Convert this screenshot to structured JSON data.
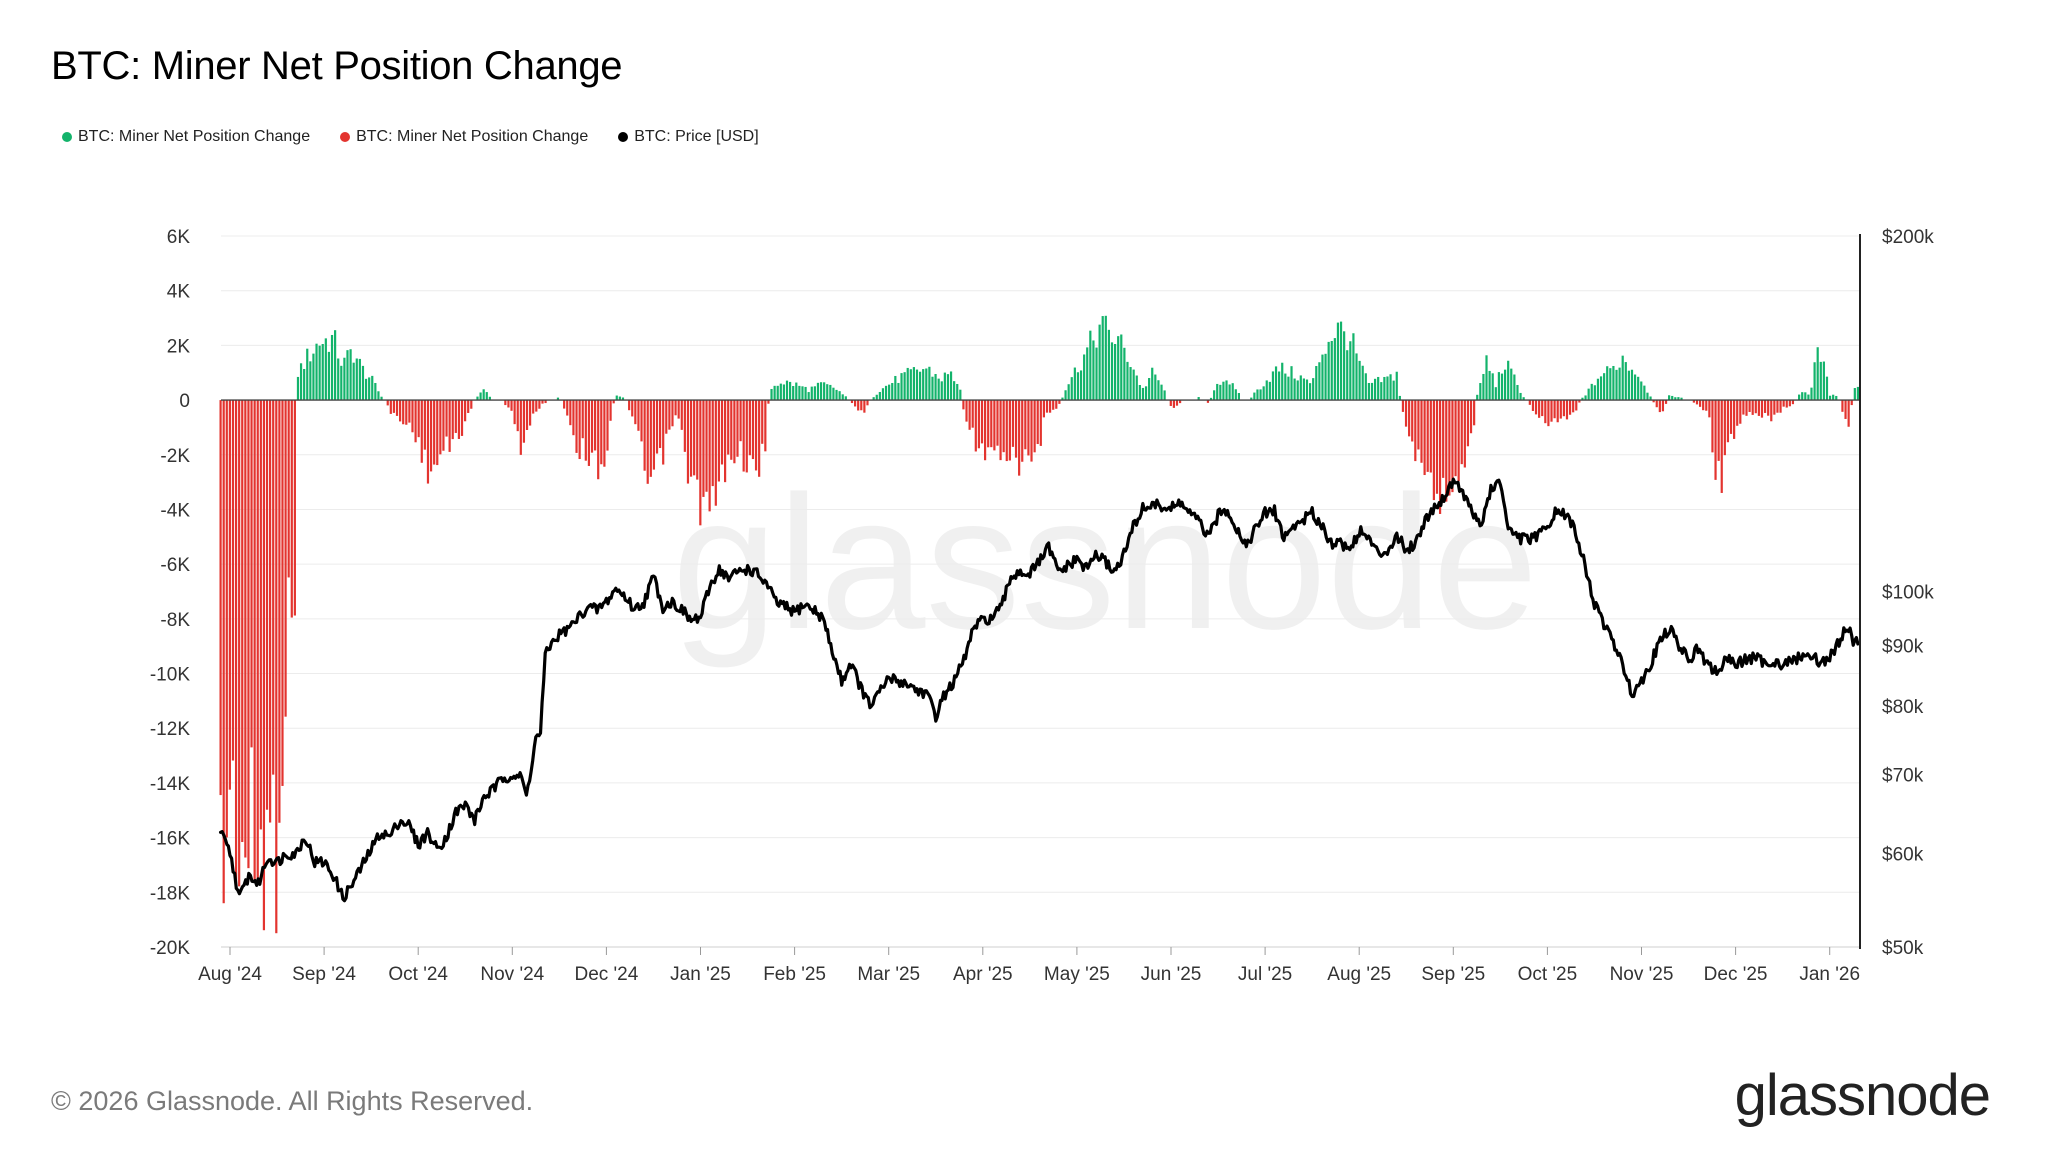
{
  "title": "BTC: Miner Net Position Change",
  "legend": [
    {
      "label": "BTC: Miner Net Position Change",
      "color": "#13b36b"
    },
    {
      "label": "BTC: Miner Net Position Change",
      "color": "#e3342f"
    },
    {
      "label": "BTC: Price [USD]",
      "color": "#000000"
    }
  ],
  "footer": "© 2026 Glassnode. All Rights Reserved.",
  "brand": "glassnode",
  "watermark": "glassnode",
  "chart_data": {
    "type": "bar+line",
    "title": "BTC: Miner Net Position Change",
    "positive_color": "#13b36b",
    "negative_color": "#e3342f",
    "price_color": "#000000",
    "left_axis": {
      "min": -20000,
      "max": 6000,
      "ticks": [
        6000,
        4000,
        2000,
        0,
        -2000,
        -4000,
        -6000,
        -8000,
        -10000,
        -12000,
        -14000,
        -16000,
        -18000,
        -20000
      ],
      "tick_labels": [
        "6K",
        "4K",
        "2K",
        "0",
        "-2K",
        "-4K",
        "-6K",
        "-8K",
        "-10K",
        "-12K",
        "-14K",
        "-16K",
        "-18K",
        "-20K"
      ]
    },
    "right_axis": {
      "scale": "log",
      "min": 50000,
      "max": 200000,
      "ticks": [
        200000,
        100000,
        90000,
        80000,
        70000,
        60000,
        50000
      ],
      "tick_labels": [
        "$200k",
        "$100k",
        "$90k",
        "$80k",
        "$70k",
        "$60k",
        "$50k"
      ]
    },
    "x_axis": {
      "range_months": [
        -0.1,
        17.3
      ],
      "tick_labels": [
        "Aug '24",
        "Sep '24",
        "Oct '24",
        "Nov '24",
        "Dec '24",
        "Jan '25",
        "Feb '25",
        "Mar '25",
        "Apr '25",
        "May '25",
        "Jun '25",
        "Jul '25",
        "Aug '25",
        "Sep '25",
        "Oct '25",
        "Nov '25",
        "Dec '25",
        "Jan '26"
      ],
      "tick_months": [
        0,
        1,
        2,
        3,
        4,
        5,
        6,
        7,
        8,
        9,
        10,
        11,
        12,
        13,
        14,
        15,
        16,
        17
      ]
    },
    "net_position_change_anchors": [
      [
        -0.1,
        -17800
      ],
      [
        0.0,
        -15000
      ],
      [
        0.2,
        -17500
      ],
      [
        0.4,
        -16800
      ],
      [
        0.5,
        -16000
      ],
      [
        0.6,
        -9500
      ],
      [
        0.7,
        -6300
      ],
      [
        0.72,
        1000
      ],
      [
        0.8,
        1500
      ],
      [
        0.95,
        2200
      ],
      [
        1.1,
        2300
      ],
      [
        1.2,
        1300
      ],
      [
        1.3,
        1900
      ],
      [
        1.4,
        1200
      ],
      [
        1.5,
        800
      ],
      [
        1.6,
        200
      ],
      [
        1.7,
        -400
      ],
      [
        1.85,
        -900
      ],
      [
        1.95,
        -1000
      ],
      [
        2.05,
        -2300
      ],
      [
        2.15,
        -2700
      ],
      [
        2.25,
        -2000
      ],
      [
        2.35,
        -1700
      ],
      [
        2.5,
        -900
      ],
      [
        2.6,
        0
      ],
      [
        2.7,
        400
      ],
      [
        2.8,
        0
      ],
      [
        2.85,
        100
      ],
      [
        3.0,
        -400
      ],
      [
        3.1,
        -1900
      ],
      [
        3.2,
        -800
      ],
      [
        3.3,
        -200
      ],
      [
        3.4,
        0
      ],
      [
        3.5,
        100
      ],
      [
        3.6,
        -700
      ],
      [
        3.7,
        -1800
      ],
      [
        3.8,
        -2000
      ],
      [
        3.9,
        -2400
      ],
      [
        4.0,
        -2200
      ],
      [
        4.05,
        -500
      ],
      [
        4.1,
        200
      ],
      [
        4.2,
        100
      ],
      [
        4.3,
        -900
      ],
      [
        4.4,
        -2500
      ],
      [
        4.45,
        -3300
      ],
      [
        4.55,
        -2500
      ],
      [
        4.7,
        -1000
      ],
      [
        4.75,
        -400
      ],
      [
        4.85,
        -2400
      ],
      [
        4.95,
        -3500
      ],
      [
        5.05,
        -4100
      ],
      [
        5.15,
        -4200
      ],
      [
        5.2,
        -3200
      ],
      [
        5.3,
        -2400
      ],
      [
        5.4,
        -1700
      ],
      [
        5.5,
        -2500
      ],
      [
        5.6,
        -2800
      ],
      [
        5.7,
        -1500
      ],
      [
        5.73,
        400
      ],
      [
        5.85,
        700
      ],
      [
        6.0,
        600
      ],
      [
        6.15,
        400
      ],
      [
        6.3,
        600
      ],
      [
        6.45,
        400
      ],
      [
        6.55,
        100
      ],
      [
        6.65,
        -300
      ],
      [
        6.75,
        -400
      ],
      [
        6.85,
        200
      ],
      [
        7.0,
        600
      ],
      [
        7.15,
        900
      ],
      [
        7.3,
        1100
      ],
      [
        7.4,
        1200
      ],
      [
        7.55,
        800
      ],
      [
        7.65,
        1000
      ],
      [
        7.75,
        600
      ],
      [
        7.8,
        -400
      ],
      [
        7.9,
        -1400
      ],
      [
        8.0,
        -2000
      ],
      [
        8.15,
        -2200
      ],
      [
        8.3,
        -2400
      ],
      [
        8.45,
        -2200
      ],
      [
        8.6,
        -2000
      ],
      [
        8.65,
        -600
      ],
      [
        8.8,
        -300
      ],
      [
        8.9,
        600
      ],
      [
        9.0,
        1200
      ],
      [
        9.1,
        1800
      ],
      [
        9.25,
        2800
      ],
      [
        9.35,
        2500
      ],
      [
        9.45,
        2200
      ],
      [
        9.55,
        1600
      ],
      [
        9.7,
        400
      ],
      [
        9.8,
        1000
      ],
      [
        9.9,
        600
      ],
      [
        10.0,
        -300
      ],
      [
        10.1,
        -100
      ],
      [
        10.2,
        0
      ],
      [
        10.3,
        100
      ],
      [
        10.4,
        -100
      ],
      [
        10.5,
        700
      ],
      [
        10.6,
        800
      ],
      [
        10.7,
        300
      ],
      [
        10.8,
        -100
      ],
      [
        10.9,
        300
      ],
      [
        11.0,
        700
      ],
      [
        11.15,
        1200
      ],
      [
        11.3,
        1000
      ],
      [
        11.5,
        600
      ],
      [
        11.6,
        1800
      ],
      [
        11.75,
        2700
      ],
      [
        11.9,
        2400
      ],
      [
        12.0,
        1400
      ],
      [
        12.1,
        600
      ],
      [
        12.3,
        800
      ],
      [
        12.4,
        1000
      ],
      [
        12.45,
        -300
      ],
      [
        12.55,
        -1500
      ],
      [
        12.7,
        -3000
      ],
      [
        12.8,
        -3500
      ],
      [
        12.95,
        -3400
      ],
      [
        13.1,
        -2500
      ],
      [
        13.2,
        -1500
      ],
      [
        13.25,
        100
      ],
      [
        13.35,
        1500
      ],
      [
        13.45,
        600
      ],
      [
        13.55,
        1400
      ],
      [
        13.65,
        800
      ],
      [
        13.75,
        100
      ],
      [
        13.85,
        -400
      ],
      [
        14.0,
        -800
      ],
      [
        14.15,
        -700
      ],
      [
        14.3,
        -400
      ],
      [
        14.35,
        0
      ],
      [
        14.45,
        400
      ],
      [
        14.55,
        900
      ],
      [
        14.7,
        1200
      ],
      [
        14.8,
        1600
      ],
      [
        14.9,
        1200
      ],
      [
        15.0,
        800
      ],
      [
        15.1,
        100
      ],
      [
        15.2,
        -600
      ],
      [
        15.3,
        200
      ],
      [
        15.4,
        100
      ],
      [
        15.5,
        0
      ],
      [
        15.6,
        -200
      ],
      [
        15.7,
        -400
      ],
      [
        15.75,
        -1500
      ],
      [
        15.8,
        -2800
      ],
      [
        15.85,
        -2900
      ],
      [
        15.95,
        -1600
      ],
      [
        16.1,
        -500
      ],
      [
        16.2,
        -600
      ],
      [
        16.3,
        -600
      ],
      [
        16.4,
        -700
      ],
      [
        16.5,
        -300
      ],
      [
        16.6,
        -200
      ],
      [
        16.7,
        300
      ],
      [
        16.8,
        200
      ],
      [
        16.85,
        1800
      ],
      [
        16.95,
        1200
      ],
      [
        17.0,
        200
      ],
      [
        17.1,
        100
      ],
      [
        17.15,
        -700
      ],
      [
        17.22,
        -900
      ],
      [
        17.25,
        600
      ]
    ],
    "price_usd_anchors": [
      [
        -0.1,
        62500
      ],
      [
        0.0,
        60000
      ],
      [
        0.1,
        55000
      ],
      [
        0.2,
        57500
      ],
      [
        0.3,
        56500
      ],
      [
        0.4,
        59500
      ],
      [
        0.5,
        59000
      ],
      [
        0.6,
        60000
      ],
      [
        0.7,
        60000
      ],
      [
        0.8,
        62000
      ],
      [
        0.9,
        59000
      ],
      [
        1.0,
        59000
      ],
      [
        1.1,
        57500
      ],
      [
        1.2,
        55000
      ],
      [
        1.3,
        56500
      ],
      [
        1.4,
        58500
      ],
      [
        1.5,
        60500
      ],
      [
        1.6,
        62500
      ],
      [
        1.7,
        62000
      ],
      [
        1.8,
        64000
      ],
      [
        1.9,
        63500
      ],
      [
        2.0,
        61000
      ],
      [
        2.1,
        62500
      ],
      [
        2.2,
        60500
      ],
      [
        2.3,
        62000
      ],
      [
        2.4,
        65000
      ],
      [
        2.5,
        66000
      ],
      [
        2.6,
        64000
      ],
      [
        2.7,
        67000
      ],
      [
        2.8,
        68000
      ],
      [
        2.9,
        69500
      ],
      [
        3.0,
        70000
      ],
      [
        3.1,
        69500
      ],
      [
        3.15,
        67000
      ],
      [
        3.25,
        75000
      ],
      [
        3.3,
        76000
      ],
      [
        3.35,
        88000
      ],
      [
        3.4,
        90000
      ],
      [
        3.5,
        92000
      ],
      [
        3.6,
        93000
      ],
      [
        3.7,
        95000
      ],
      [
        3.8,
        97000
      ],
      [
        3.9,
        96500
      ],
      [
        4.0,
        98000
      ],
      [
        4.1,
        100500
      ],
      [
        4.2,
        99000
      ],
      [
        4.3,
        96500
      ],
      [
        4.4,
        98000
      ],
      [
        4.5,
        103000
      ],
      [
        4.6,
        97000
      ],
      [
        4.7,
        98000
      ],
      [
        4.8,
        96500
      ],
      [
        4.9,
        94500
      ],
      [
        5.0,
        95000
      ],
      [
        5.1,
        101000
      ],
      [
        5.2,
        104500
      ],
      [
        5.3,
        102500
      ],
      [
        5.4,
        104000
      ],
      [
        5.5,
        104500
      ],
      [
        5.6,
        103500
      ],
      [
        5.7,
        101500
      ],
      [
        5.8,
        98000
      ],
      [
        5.9,
        97000
      ],
      [
        6.0,
        96000
      ],
      [
        6.1,
        97500
      ],
      [
        6.2,
        96500
      ],
      [
        6.3,
        95000
      ],
      [
        6.4,
        89000
      ],
      [
        6.5,
        84000
      ],
      [
        6.6,
        87000
      ],
      [
        6.7,
        83000
      ],
      [
        6.8,
        80000
      ],
      [
        6.9,
        82000
      ],
      [
        7.0,
        84500
      ],
      [
        7.1,
        84000
      ],
      [
        7.2,
        83500
      ],
      [
        7.3,
        82500
      ],
      [
        7.4,
        82000
      ],
      [
        7.5,
        78500
      ],
      [
        7.6,
        82000
      ],
      [
        7.7,
        84000
      ],
      [
        7.8,
        87500
      ],
      [
        7.9,
        93000
      ],
      [
        8.0,
        94500
      ],
      [
        8.1,
        95000
      ],
      [
        8.2,
        97000
      ],
      [
        8.3,
        103000
      ],
      [
        8.4,
        104000
      ],
      [
        8.5,
        103500
      ],
      [
        8.6,
        106000
      ],
      [
        8.7,
        109000
      ],
      [
        8.8,
        104000
      ],
      [
        8.9,
        105000
      ],
      [
        9.0,
        106500
      ],
      [
        9.1,
        104500
      ],
      [
        9.2,
        107500
      ],
      [
        9.3,
        106000
      ],
      [
        9.4,
        104000
      ],
      [
        9.5,
        107500
      ],
      [
        9.6,
        113500
      ],
      [
        9.7,
        117500
      ],
      [
        9.8,
        118500
      ],
      [
        9.9,
        118000
      ],
      [
        10.0,
        117500
      ],
      [
        10.1,
        119000
      ],
      [
        10.2,
        116500
      ],
      [
        10.3,
        114500
      ],
      [
        10.4,
        111000
      ],
      [
        10.5,
        116000
      ],
      [
        10.6,
        117500
      ],
      [
        10.7,
        113000
      ],
      [
        10.8,
        109500
      ],
      [
        10.9,
        113000
      ],
      [
        11.0,
        116500
      ],
      [
        11.1,
        117000
      ],
      [
        11.2,
        111000
      ],
      [
        11.3,
        113500
      ],
      [
        11.4,
        115000
      ],
      [
        11.5,
        116500
      ],
      [
        11.6,
        114000
      ],
      [
        11.7,
        110000
      ],
      [
        11.8,
        110000
      ],
      [
        11.9,
        108500
      ],
      [
        12.0,
        112500
      ],
      [
        12.1,
        111000
      ],
      [
        12.2,
        107500
      ],
      [
        12.3,
        108500
      ],
      [
        12.4,
        111500
      ],
      [
        12.5,
        108500
      ],
      [
        12.6,
        110000
      ],
      [
        12.7,
        115000
      ],
      [
        12.8,
        118000
      ],
      [
        12.9,
        120000
      ],
      [
        13.0,
        124500
      ],
      [
        13.1,
        121500
      ],
      [
        13.2,
        116500
      ],
      [
        13.3,
        114000
      ],
      [
        13.4,
        122000
      ],
      [
        13.5,
        123500
      ],
      [
        13.6,
        112000
      ],
      [
        13.7,
        111000
      ],
      [
        13.8,
        110500
      ],
      [
        13.9,
        111500
      ],
      [
        14.0,
        113500
      ],
      [
        14.1,
        117000
      ],
      [
        14.2,
        116000
      ],
      [
        14.3,
        112500
      ],
      [
        14.4,
        105000
      ],
      [
        14.5,
        97500
      ],
      [
        14.6,
        94000
      ],
      [
        14.7,
        90500
      ],
      [
        14.8,
        86500
      ],
      [
        14.85,
        84500
      ],
      [
        14.9,
        82000
      ],
      [
        15.0,
        84000
      ],
      [
        15.1,
        87000
      ],
      [
        15.2,
        91000
      ],
      [
        15.3,
        93000
      ],
      [
        15.4,
        90000
      ],
      [
        15.5,
        87500
      ],
      [
        15.6,
        89500
      ],
      [
        15.7,
        86500
      ],
      [
        15.8,
        85500
      ],
      [
        15.9,
        87500
      ],
      [
        16.0,
        87000
      ],
      [
        16.1,
        87500
      ],
      [
        16.2,
        88000
      ],
      [
        16.3,
        87000
      ],
      [
        16.4,
        87500
      ],
      [
        16.5,
        86500
      ],
      [
        16.6,
        87500
      ],
      [
        16.7,
        88000
      ],
      [
        16.8,
        88500
      ],
      [
        16.9,
        87000
      ],
      [
        17.0,
        88000
      ],
      [
        17.05,
        89000
      ],
      [
        17.15,
        92500
      ],
      [
        17.2,
        93000
      ],
      [
        17.25,
        91000
      ]
    ]
  }
}
